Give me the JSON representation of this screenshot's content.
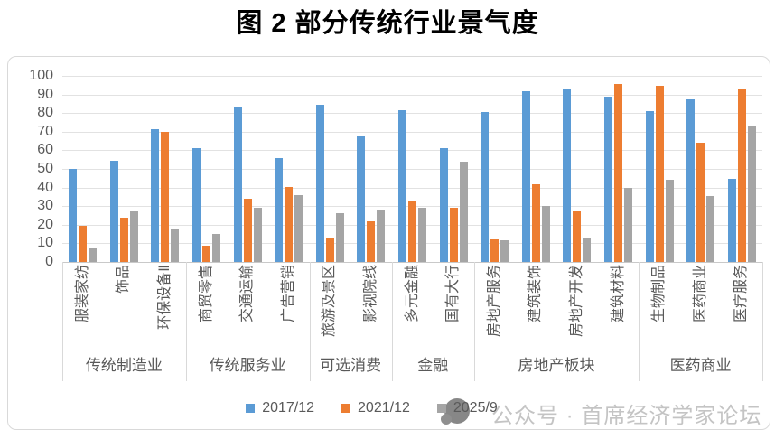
{
  "chart_data": {
    "type": "bar",
    "title": "图 2 部分传统行业景气度",
    "categories": [
      "服装家纺",
      "饰品",
      "环保设备Ⅱ",
      "商贸零售",
      "交通运输",
      "广告营销",
      "旅游及景区",
      "影视院线",
      "多元金融",
      "国有大行",
      "房地产服务",
      "建筑装饰",
      "房地产开发",
      "建筑材料",
      "生物制品",
      "医药商业",
      "医疗服务"
    ],
    "category_groups": [
      {
        "label": "传统制造业",
        "span": 3
      },
      {
        "label": "传统服务业",
        "span": 3
      },
      {
        "label": "可选消费",
        "span": 2
      },
      {
        "label": "金融",
        "span": 2
      },
      {
        "label": "房地产板块",
        "span": 4
      },
      {
        "label": "医药商业",
        "span": 3
      }
    ],
    "series": [
      {
        "name": "2017/12",
        "color": "#5B9BD5",
        "values": [
          50,
          54.5,
          71.5,
          61,
          83,
          56,
          84.5,
          67.5,
          81.5,
          61,
          80.5,
          92,
          93,
          89,
          81,
          87.5,
          44.5
        ]
      },
      {
        "name": "2021/12",
        "color": "#ED7D31",
        "values": [
          19.5,
          24,
          70,
          9,
          34,
          40.5,
          13,
          22,
          32.5,
          29,
          12,
          42,
          27,
          95.5,
          94.5,
          64,
          93
        ]
      },
      {
        "name": "2025/9",
        "color": "#A5A5A5",
        "values": [
          8,
          27,
          17.5,
          15,
          29,
          36,
          26,
          27.5,
          29,
          54,
          11.5,
          30,
          13,
          40,
          44,
          35.5,
          73
        ]
      }
    ],
    "ylim": [
      0,
      100
    ],
    "ytick_step": 10,
    "grid": true,
    "legend_position": "bottom"
  },
  "watermark": {
    "text": "公众号 · 首席经济学家论坛",
    "logo": "speech-bubble-logo"
  },
  "colors": {
    "grid": "#e2e2e2",
    "axis_text": "#595959",
    "border": "#d9d9d9",
    "watermark_text": "#c4c4c4",
    "logo": "#878787"
  }
}
